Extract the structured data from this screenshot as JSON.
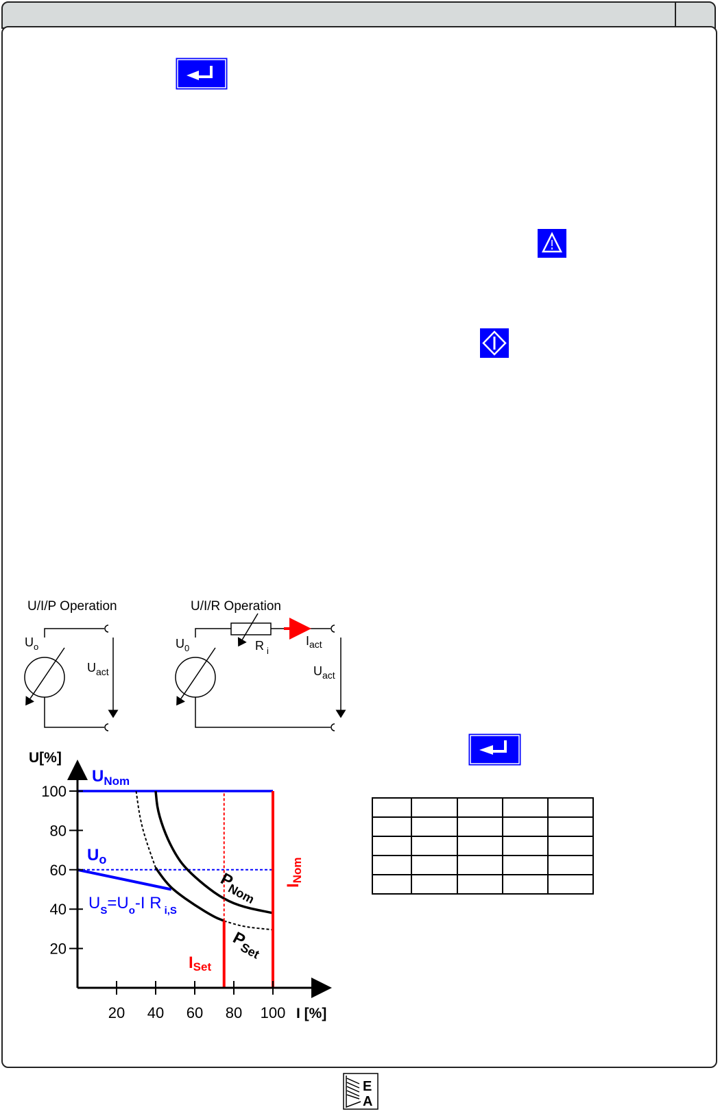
{
  "icons": {
    "enter_top": "enter-return-icon",
    "warning": "warning-triangle-icon",
    "note": "diamond-info-icon",
    "enter_bottom": "enter-return-icon",
    "logo": "ea-logo"
  },
  "colors": {
    "icon_blue": "#0000ff",
    "header_gray": "#d7dbdb",
    "red": "#ff0000"
  },
  "logo_text": "EA",
  "circuits": {
    "uip": {
      "title": "U/I/P Operation",
      "u0": "U",
      "u0_sub": "o",
      "uact": "U",
      "uact_sub": "act"
    },
    "uir": {
      "title": "U/I/R Operation",
      "u0": "U",
      "u0_sub": "0",
      "ri": "R",
      "ri_sub": "i",
      "iact": "I",
      "iact_sub": "act",
      "uact": "U",
      "uact_sub": "act"
    }
  },
  "chart_data": {
    "type": "line",
    "xlabel": "I [%]",
    "ylabel": "U[%]",
    "xlim": [
      0,
      100
    ],
    "ylim": [
      0,
      100
    ],
    "x_ticks": [
      20,
      40,
      60,
      80,
      100
    ],
    "y_ticks": [
      20,
      40,
      60,
      80,
      100
    ],
    "grid": false,
    "labels": {
      "unom": "U",
      "unom_sub": "Nom",
      "uo": "U",
      "uo_sub": "o",
      "us": "U",
      "us_sub": "S",
      "us_mid": "=U",
      "us_mid_sub": "o",
      "us_end": "-I R",
      "us_end_sub": "i,S",
      "pnom": "P",
      "pnom_sub": "Nom",
      "pset": "P",
      "pset_sub": "Set",
      "iset": "I",
      "iset_sub": "Set",
      "inom": "I",
      "inom_sub": "Nom"
    },
    "series": [
      {
        "key": "unom",
        "color": "#0000ff",
        "style": "solid",
        "points": [
          [
            0,
            100
          ],
          [
            100,
            100
          ]
        ]
      },
      {
        "key": "uo",
        "color": "#0000ff",
        "style": "dashed",
        "points": [
          [
            0,
            60
          ],
          [
            100,
            60
          ]
        ]
      },
      {
        "key": "us",
        "color": "#0000ff",
        "style": "solid",
        "points": [
          [
            0,
            60
          ],
          [
            48,
            50
          ]
        ]
      },
      {
        "key": "pnom",
        "color": "#000000",
        "style": "solid",
        "points": [
          [
            40,
            100
          ],
          [
            41,
            90
          ],
          [
            45,
            78
          ],
          [
            50,
            68
          ],
          [
            55,
            61
          ],
          [
            65,
            52
          ],
          [
            75,
            45
          ],
          [
            85,
            41
          ],
          [
            100,
            38
          ]
        ]
      },
      {
        "key": "pset_dashed_high",
        "color": "#000000",
        "style": "dashed",
        "points": [
          [
            30,
            100
          ],
          [
            32,
            86
          ],
          [
            35,
            75
          ],
          [
            40,
            61
          ]
        ]
      },
      {
        "key": "pset",
        "color": "#000000",
        "style": "solid",
        "points": [
          [
            40,
            61
          ],
          [
            45,
            54
          ],
          [
            50,
            49
          ],
          [
            60,
            42
          ],
          [
            70,
            36
          ],
          [
            75,
            34
          ]
        ]
      },
      {
        "key": "pset_dashed_low",
        "color": "#000000",
        "style": "dashed",
        "points": [
          [
            75,
            34
          ],
          [
            85,
            31
          ],
          [
            100,
            29.5
          ]
        ]
      },
      {
        "key": "iset",
        "color": "#ff0000",
        "style": "solid",
        "points": [
          [
            75,
            0
          ],
          [
            75,
            34
          ]
        ]
      },
      {
        "key": "iset_dashed",
        "color": "#ff0000",
        "style": "dashed",
        "points": [
          [
            75,
            34
          ],
          [
            75,
            100
          ]
        ]
      },
      {
        "key": "inom",
        "color": "#ff0000",
        "style": "solid",
        "points": [
          [
            100,
            0
          ],
          [
            100,
            100
          ]
        ]
      }
    ]
  }
}
